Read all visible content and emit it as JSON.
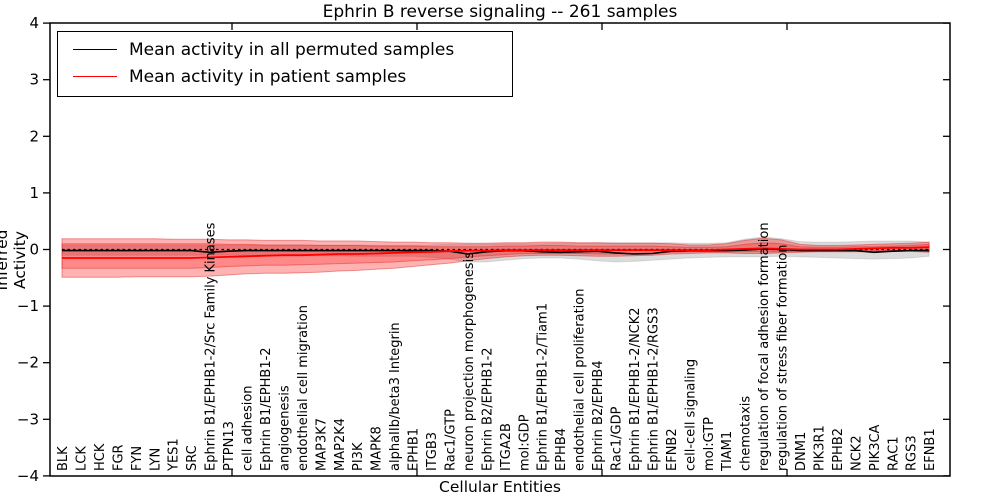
{
  "title": "Ephrin B reverse signaling -- 261 samples",
  "axes": {
    "ylabel": "Inferred Activity",
    "xlabel": "Cellular Entities",
    "y_tick_labels": [
      "4",
      "3",
      "2",
      "1",
      "0",
      "−1",
      "−2",
      "−3",
      "−4"
    ],
    "y_tick_values": [
      4,
      3,
      2,
      1,
      0,
      -1,
      -2,
      -3,
      -4
    ],
    "ylim": [
      -4,
      4
    ]
  },
  "legend": {
    "entries": [
      {
        "label": "Mean activity in all permuted samples",
        "color": "#000000"
      },
      {
        "label": "Mean activity in patient samples",
        "color": "#ff0000"
      }
    ],
    "position": "upper left"
  },
  "colors": {
    "permuted_line": "#000000",
    "patient_line": "#ff0000",
    "zero_dashed_line": "#000000",
    "gray_band_fill": "rgba(0,0,0,0.14)",
    "red_band_outer_fill": "rgba(255,0,0,0.30)",
    "red_band_inner_fill": "rgba(255,0,0,0.23)",
    "red_band_edge": "rgba(215,40,40,0.45)",
    "gray_band_edge": "rgba(0,0,0,0.10)",
    "spine": "#000000"
  },
  "chart_data": {
    "type": "line",
    "title": "Ephrin B reverse signaling -- 261 samples",
    "xlabel": "Cellular Entities",
    "ylabel": "Inferred Activity",
    "ylim": [
      -4,
      4
    ],
    "grid": false,
    "legend_position": "upper left",
    "zero_line": 0.0,
    "categories": [
      "BLK",
      "LCK",
      "HCK",
      "FGR",
      "FYN",
      "LYN",
      "YES1",
      "SRC",
      "Ephrin B1/EPHB1-2/Src Family Kinases",
      "PTPN13",
      "cell adhesion",
      "Ephrin B1/EPHB1-2",
      "angiogenesis",
      "endothelial cell migration",
      "MAP3K7",
      "MAP2K4",
      "PI3K",
      "MAPK8",
      "alphaIIb/beta3 Integrin",
      "EPHB1",
      "ITGB3",
      "Rac1/GTP",
      "neuron projection morphogenesis",
      "Ephrin B2/EPHB1-2",
      "ITGA2B",
      "mol:GDP",
      "Ephrin B1/EPHB1-2/Tiam1",
      "EPHB4",
      "endothelial cell proliferation",
      "Ephrin B2/EPHB4",
      "Rac1/GDP",
      "Ephrin B1/EPHB1-2/NCK2",
      "Ephrin B1/EPHB1-2/RGS3",
      "EFNB2",
      "cell-cell signaling",
      "mol:GTP",
      "TIAM1",
      "chemotaxis",
      "regulation of focal adhesion formation",
      "regulation of stress fiber formation",
      "DNM1",
      "PIK3R1",
      "EPHB2",
      "NCK2",
      "PIK3CA",
      "RAC1",
      "RGS3",
      "EFNB1"
    ],
    "series": [
      {
        "name": "Mean activity in all permuted samples",
        "color": "#000000",
        "values": [
          -0.02,
          -0.02,
          -0.02,
          -0.02,
          -0.02,
          -0.02,
          -0.02,
          -0.02,
          -0.05,
          -0.03,
          -0.02,
          -0.02,
          -0.02,
          -0.02,
          -0.02,
          -0.02,
          -0.02,
          -0.02,
          -0.02,
          -0.02,
          -0.02,
          -0.03,
          -0.08,
          -0.04,
          -0.02,
          -0.02,
          -0.04,
          -0.05,
          -0.04,
          -0.03,
          -0.06,
          -0.08,
          -0.07,
          -0.03,
          -0.02,
          -0.02,
          -0.02,
          -0.01,
          0.01,
          0.0,
          -0.02,
          -0.02,
          -0.02,
          -0.02,
          -0.05,
          -0.03,
          -0.02,
          -0.02
        ]
      },
      {
        "name": "Mean activity in patient samples",
        "color": "#ff0000",
        "values": [
          -0.15,
          -0.15,
          -0.15,
          -0.15,
          -0.15,
          -0.15,
          -0.15,
          -0.15,
          -0.14,
          -0.13,
          -0.12,
          -0.11,
          -0.1,
          -0.1,
          -0.09,
          -0.08,
          -0.08,
          -0.07,
          -0.06,
          -0.05,
          -0.04,
          -0.03,
          -0.02,
          -0.02,
          -0.01,
          -0.01,
          -0.01,
          -0.01,
          -0.01,
          -0.01,
          -0.01,
          -0.01,
          -0.01,
          -0.01,
          -0.01,
          -0.01,
          0.0,
          0.01,
          0.02,
          0.01,
          0.0,
          0.0,
          0.0,
          0.01,
          0.02,
          0.03,
          0.03,
          0.04
        ]
      }
    ],
    "bands": [
      {
        "name": "permuted-sample-range",
        "fill": "gray",
        "upper": [
          0.08,
          0.08,
          0.08,
          0.08,
          0.08,
          0.08,
          0.08,
          0.08,
          0.08,
          0.08,
          0.08,
          0.08,
          0.08,
          0.08,
          0.08,
          0.08,
          0.08,
          0.08,
          0.08,
          0.08,
          0.08,
          0.09,
          0.09,
          0.09,
          0.1,
          0.1,
          0.1,
          0.11,
          0.11,
          0.12,
          0.12,
          0.12,
          0.12,
          0.12,
          0.11,
          0.11,
          0.12,
          0.18,
          0.22,
          0.19,
          0.14,
          0.13,
          0.13,
          0.14,
          0.15,
          0.15,
          0.15,
          0.13
        ],
        "lower": [
          -0.1,
          -0.1,
          -0.1,
          -0.1,
          -0.1,
          -0.1,
          -0.1,
          -0.1,
          -0.1,
          -0.1,
          -0.1,
          -0.11,
          -0.11,
          -0.11,
          -0.11,
          -0.11,
          -0.12,
          -0.12,
          -0.12,
          -0.12,
          -0.14,
          -0.17,
          -0.22,
          -0.22,
          -0.19,
          -0.16,
          -0.15,
          -0.15,
          -0.17,
          -0.2,
          -0.22,
          -0.21,
          -0.19,
          -0.17,
          -0.15,
          -0.14,
          -0.13,
          -0.13,
          -0.13,
          -0.12,
          -0.13,
          -0.14,
          -0.15,
          -0.16,
          -0.17,
          -0.16,
          -0.15,
          -0.12
        ]
      },
      {
        "name": "patient-sample-range-outer",
        "fill": "red-light",
        "upper": [
          0.19,
          0.19,
          0.19,
          0.19,
          0.19,
          0.19,
          0.18,
          0.18,
          0.18,
          0.17,
          0.17,
          0.16,
          0.16,
          0.16,
          0.15,
          0.15,
          0.15,
          0.14,
          0.13,
          0.13,
          0.12,
          0.12,
          0.11,
          0.11,
          0.12,
          0.12,
          0.13,
          0.13,
          0.12,
          0.12,
          0.11,
          0.11,
          0.11,
          0.1,
          0.08,
          0.08,
          0.1,
          0.16,
          0.2,
          0.17,
          0.09,
          0.07,
          0.07,
          0.08,
          0.09,
          0.1,
          0.11,
          0.13
        ],
        "lower": [
          -0.49,
          -0.49,
          -0.49,
          -0.49,
          -0.48,
          -0.48,
          -0.48,
          -0.48,
          -0.47,
          -0.45,
          -0.43,
          -0.42,
          -0.42,
          -0.41,
          -0.4,
          -0.38,
          -0.37,
          -0.35,
          -0.33,
          -0.3,
          -0.27,
          -0.24,
          -0.2,
          -0.16,
          -0.13,
          -0.11,
          -0.1,
          -0.1,
          -0.11,
          -0.12,
          -0.12,
          -0.11,
          -0.1,
          -0.08,
          -0.07,
          -0.06,
          -0.06,
          -0.07,
          -0.07,
          -0.06,
          -0.05,
          -0.04,
          -0.04,
          -0.04,
          -0.04,
          -0.03,
          -0.03,
          -0.05
        ]
      },
      {
        "name": "patient-sample-range-inner",
        "fill": "red-dark",
        "upper": [
          0.1,
          0.1,
          0.1,
          0.1,
          0.1,
          0.1,
          0.1,
          0.1,
          0.1,
          0.09,
          0.09,
          0.08,
          0.08,
          0.08,
          0.07,
          0.07,
          0.07,
          0.06,
          0.06,
          0.06,
          0.05,
          0.05,
          0.05,
          0.05,
          0.06,
          0.06,
          0.07,
          0.07,
          0.06,
          0.06,
          0.06,
          0.06,
          0.06,
          0.05,
          0.04,
          0.04,
          0.05,
          0.09,
          0.12,
          0.1,
          0.05,
          0.04,
          0.04,
          0.05,
          0.05,
          0.06,
          0.07,
          0.09
        ],
        "lower": [
          -0.33,
          -0.33,
          -0.33,
          -0.33,
          -0.33,
          -0.33,
          -0.33,
          -0.33,
          -0.32,
          -0.3,
          -0.29,
          -0.28,
          -0.28,
          -0.27,
          -0.26,
          -0.25,
          -0.24,
          -0.23,
          -0.22,
          -0.2,
          -0.18,
          -0.16,
          -0.13,
          -0.11,
          -0.09,
          -0.07,
          -0.07,
          -0.07,
          -0.07,
          -0.08,
          -0.08,
          -0.07,
          -0.07,
          -0.05,
          -0.04,
          -0.04,
          -0.04,
          -0.04,
          -0.04,
          -0.04,
          -0.03,
          -0.03,
          -0.03,
          -0.03,
          -0.02,
          -0.02,
          -0.02,
          -0.03
        ]
      }
    ]
  }
}
